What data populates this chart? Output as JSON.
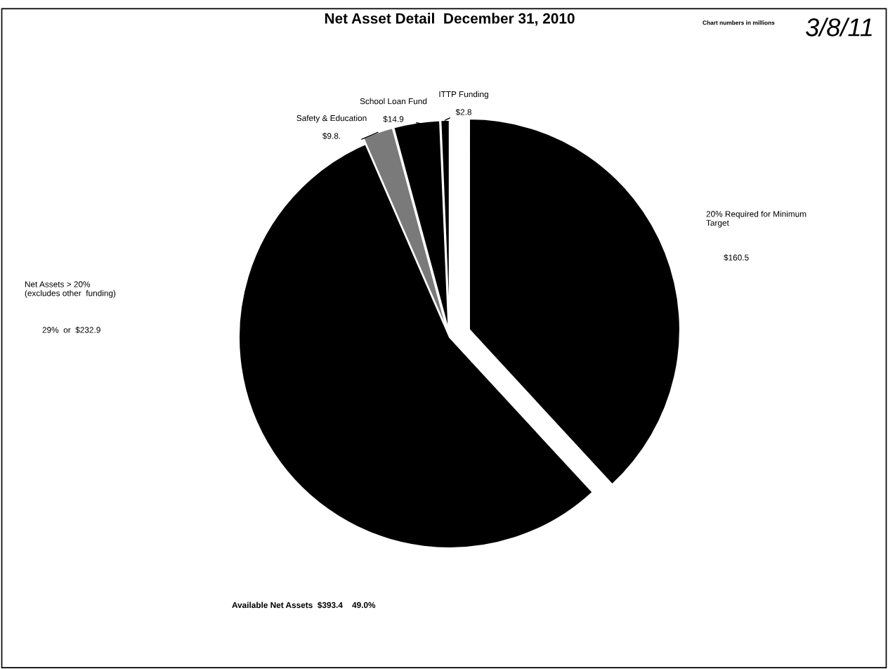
{
  "chart_data": {
    "type": "pie",
    "title": "Net Asset Detail  December 31, 2010",
    "categories": [
      "20% Required for Minimum\nTarget",
      "Net Assets > 20%\n(excludes other  funding)",
      "Safety & Education",
      "School Loan Fund",
      "ITTP Funding"
    ],
    "values": [
      160.5,
      232.9,
      9.8,
      14.9,
      2.8
    ],
    "value_labels": [
      "$160.5",
      "29%  or  $232.9",
      "$9.8.",
      "$14.9",
      "$2.8"
    ],
    "colors": [
      "#000000",
      "#000000",
      "#7a7a7a",
      "#000000",
      "#000000"
    ],
    "annotations": [
      "Available Net Assets  $393.4    49.0%",
      "Chart numbers in millions",
      "3/8/11"
    ],
    "legend": false
  }
}
